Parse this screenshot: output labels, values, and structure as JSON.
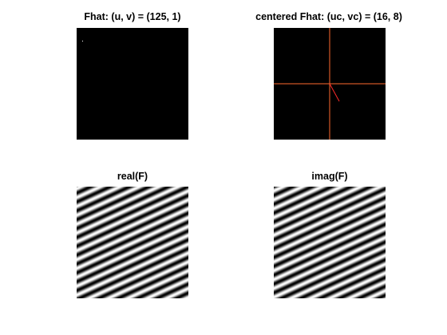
{
  "figure": {
    "background": "#ffffff",
    "panels": [
      {
        "id": "fhat",
        "title": "Fhat: (u, v) = (125, 1)",
        "kind": "spectrum",
        "background": "#000000"
      },
      {
        "id": "centered-fhat",
        "title": "centered Fhat: (uc, vc) = (16, 8)",
        "kind": "centered-spectrum",
        "background": "#000000",
        "crosshair_color": "#ff6a2e",
        "vector_color": "#ff2a2a"
      },
      {
        "id": "real-f",
        "title": "real(F)",
        "kind": "wave",
        "phase": 0
      },
      {
        "id": "imag-f",
        "title": "imag(F)",
        "kind": "wave",
        "phase": -1.5708
      }
    ]
  }
}
